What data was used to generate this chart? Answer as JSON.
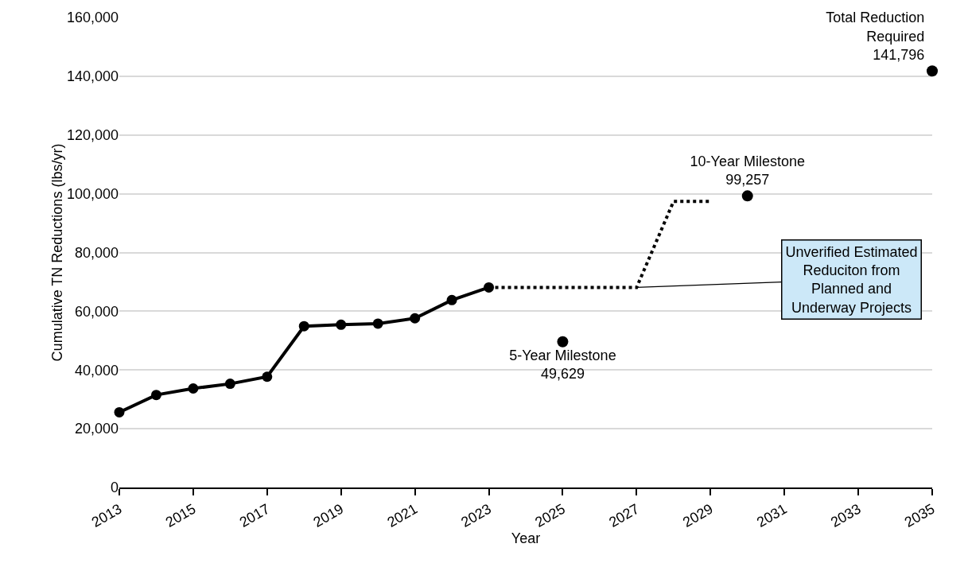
{
  "chart_data": {
    "type": "line",
    "xlabel": "Year",
    "ylabel": "Cumulative TN Reductions (lbs/yr)",
    "xlim": [
      2013,
      2035
    ],
    "xticks": [
      2013,
      2015,
      2017,
      2019,
      2021,
      2023,
      2025,
      2027,
      2029,
      2031,
      2033,
      2035
    ],
    "ylim": [
      0,
      160000
    ],
    "yticks": [
      {
        "value": 0,
        "label": "0"
      },
      {
        "value": 20000,
        "label": "20,000"
      },
      {
        "value": 40000,
        "label": "40,000"
      },
      {
        "value": 60000,
        "label": "60,000"
      },
      {
        "value": 80000,
        "label": "80,000"
      },
      {
        "value": 100000,
        "label": "100,000"
      },
      {
        "value": 120000,
        "label": "120,000"
      },
      {
        "value": 140000,
        "label": "140,000"
      },
      {
        "value": 160000,
        "label": "160,000"
      }
    ],
    "grid": "y",
    "series": [
      {
        "color": "#000000",
        "marker": "circle",
        "line_style": "solid",
        "x": [
          2013,
          2014,
          2015,
          2016,
          2017,
          2018,
          2019,
          2020,
          2021,
          2022,
          2023
        ],
        "values": [
          25600,
          31500,
          33700,
          35300,
          37700,
          54900,
          55400,
          55800,
          57600,
          63800,
          68100
        ]
      },
      {
        "color": "#000000",
        "marker": "none",
        "line_style": "dotted",
        "x": [
          2023,
          2027,
          2028,
          2029
        ],
        "values": [
          68100,
          68100,
          97400,
          97400
        ]
      },
      {
        "type": "scatter",
        "color": "#000000",
        "marker": "circle",
        "x": [
          2025,
          2030,
          2035
        ],
        "values": [
          49629,
          99257,
          141796
        ],
        "value_labels": [
          "5-Year Milestone\n49,629",
          "10-Year Milestone\n99,257",
          "Total Reduction\nRequired\n141,796"
        ]
      }
    ],
    "annotations": [
      {
        "text": "Unverified Estimated\nReduciton from\nPlanned and\nUnderway Projects",
        "x": 2027,
        "y": 68100
      }
    ]
  }
}
